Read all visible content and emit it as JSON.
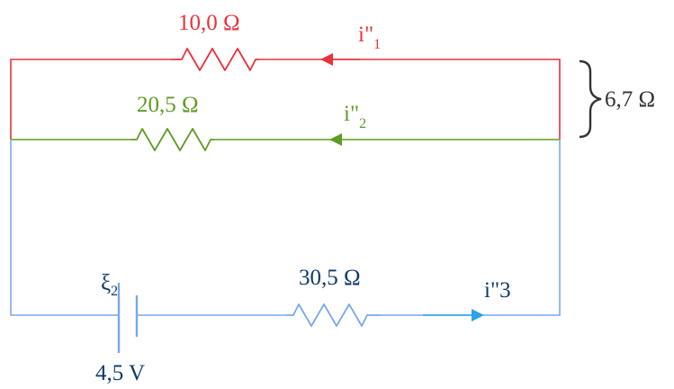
{
  "colors": {
    "branch_1": "#e8323b",
    "branch_2": "#5f9b24",
    "branch_3": "#79a9e6",
    "current_3_arrow": "#2ba3e6",
    "label_dark": "#0d3a6b",
    "brace": "#333333"
  },
  "branch_1": {
    "resistor_label": "10,0 Ω",
    "current_main": "i\"",
    "current_sub": "1"
  },
  "branch_2": {
    "resistor_label": "20,5 Ω",
    "current_main": "i\"",
    "current_sub": "2"
  },
  "equivalent": {
    "brace_label": "6,7 Ω"
  },
  "branch_3": {
    "source_symbol": "ξ",
    "source_sub": "2",
    "source_value": "4,5 V",
    "resistor_label": "30,5 Ω",
    "current_label": "i\"3"
  }
}
